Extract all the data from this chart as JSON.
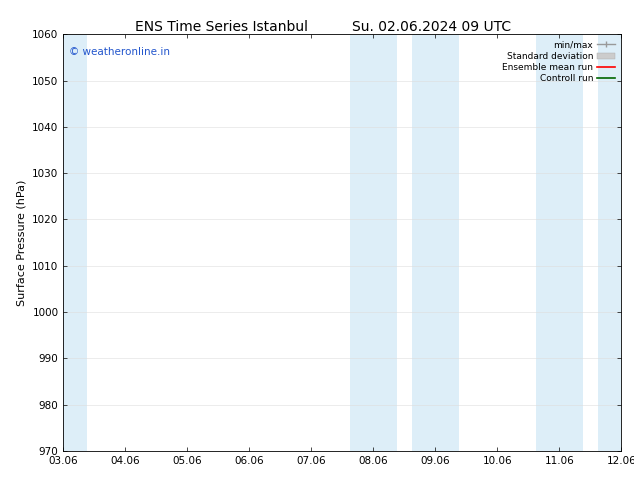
{
  "title_left": "ENS Time Series Istanbul",
  "title_right": "Su. 02.06.2024 09 UTC",
  "ylabel": "Surface Pressure (hPa)",
  "ylim": [
    970,
    1060
  ],
  "yticks": [
    970,
    980,
    990,
    1000,
    1010,
    1020,
    1030,
    1040,
    1050,
    1060
  ],
  "xtick_labels": [
    "03.06",
    "04.06",
    "05.06",
    "06.06",
    "07.06",
    "08.06",
    "09.06",
    "10.06",
    "11.06",
    "12.06"
  ],
  "shaded_bands": [
    {
      "xstart": 0,
      "xend": 1,
      "color": "#ddeef8"
    },
    {
      "xstart": 5,
      "xend": 6,
      "color": "#ddeef8"
    },
    {
      "xstart": 6,
      "xend": 7,
      "color": "#ddeef8"
    },
    {
      "xstart": 8,
      "xend": 9,
      "color": "#ddeef8"
    },
    {
      "xstart": 9,
      "xend": 10,
      "color": "#ddeef8"
    }
  ],
  "watermark_text": "© weatheronline.in",
  "watermark_color": "#2255cc",
  "bg_color": "#ffffff",
  "legend_labels": [
    "min/max",
    "Standard deviation",
    "Ensemble mean run",
    "Controll run"
  ],
  "legend_colors": [
    "#999999",
    "#cccccc",
    "#ff0000",
    "#006600"
  ],
  "title_fontsize": 10,
  "axis_fontsize": 8,
  "tick_fontsize": 7.5
}
